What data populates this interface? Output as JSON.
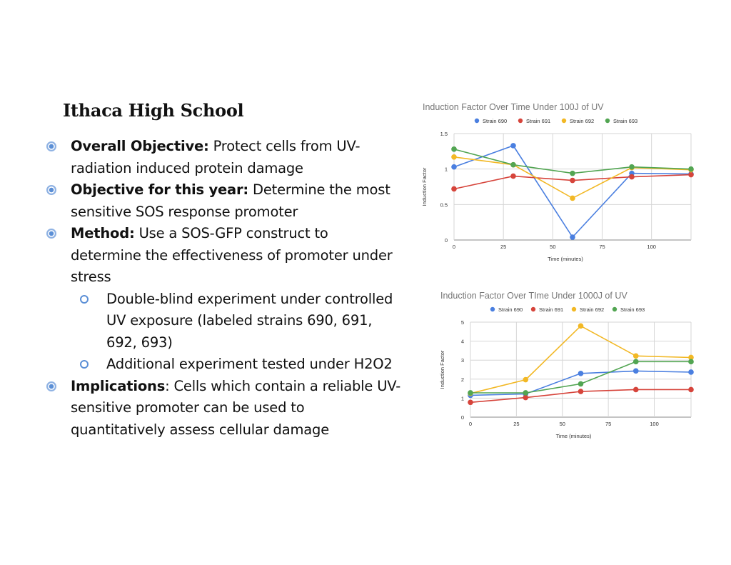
{
  "title": "Ithaca High School",
  "bullets": [
    {
      "bold": "Overall Objective:",
      "text": " Protect cells from UV-radiation induced protein damage"
    },
    {
      "bold": "Objective for this year:",
      "text": " Determine the most sensitive SOS response promoter"
    },
    {
      "bold": "Method:",
      "text": " Use a SOS-GFP construct to determine the effectiveness of promoter under stress"
    },
    {
      "bold": "Implications",
      "text": ": Cells which contain a reliable UV-sensitive promoter can be used to quantitatively assess cellular damage"
    }
  ],
  "sub_bullets": [
    "Double-blind experiment under controlled UV exposure (labeled strains 690, 691, 692, 693)",
    "Additional experiment tested under H2O2"
  ],
  "chart_data": [
    {
      "type": "line",
      "title": "Induction Factor Over Time Under 100J of UV",
      "xlabel": "Time (minutes)",
      "ylabel": "Induction Factor",
      "x": [
        0,
        30,
        60,
        90,
        120
      ],
      "xlim": [
        0,
        120
      ],
      "ylim": [
        0,
        1.5
      ],
      "xticks": [
        0,
        25,
        50,
        75,
        100
      ],
      "yticks": [
        0,
        0.5,
        1,
        1.5
      ],
      "legend": "top",
      "series": [
        {
          "name": "Strain 690",
          "color": "#4a7fe0",
          "values": [
            1.03,
            1.33,
            0.04,
            0.94,
            0.93
          ]
        },
        {
          "name": "Strain 691",
          "color": "#d6443b",
          "values": [
            0.72,
            0.9,
            0.84,
            0.89,
            0.92
          ]
        },
        {
          "name": "Strain 692",
          "color": "#f2b825",
          "values": [
            1.17,
            1.06,
            0.59,
            1.02,
            0.99
          ]
        },
        {
          "name": "Strain 693",
          "color": "#52a552",
          "values": [
            1.28,
            1.06,
            0.94,
            1.03,
            1.0
          ]
        }
      ]
    },
    {
      "type": "line",
      "title": "Induction Factor Over TIme Under 1000J of UV",
      "xlabel": "Time (minutes)",
      "ylabel": "Induction Factor",
      "x": [
        0,
        30,
        60,
        90,
        120
      ],
      "xlim": [
        0,
        120
      ],
      "ylim": [
        0,
        5
      ],
      "xticks": [
        0,
        25,
        50,
        75,
        100
      ],
      "yticks": [
        0,
        1,
        2,
        3,
        4,
        5
      ],
      "legend": "top",
      "series": [
        {
          "name": "Strain 690",
          "color": "#4a7fe0",
          "values": [
            1.15,
            1.22,
            2.3,
            2.43,
            2.37
          ]
        },
        {
          "name": "Strain 691",
          "color": "#d6443b",
          "values": [
            0.78,
            1.03,
            1.35,
            1.45,
            1.45
          ]
        },
        {
          "name": "Strain 692",
          "color": "#f2b825",
          "values": [
            1.25,
            1.97,
            4.8,
            3.22,
            3.14
          ]
        },
        {
          "name": "Strain 693",
          "color": "#52a552",
          "values": [
            1.28,
            1.28,
            1.75,
            2.92,
            2.92
          ]
        }
      ]
    }
  ]
}
